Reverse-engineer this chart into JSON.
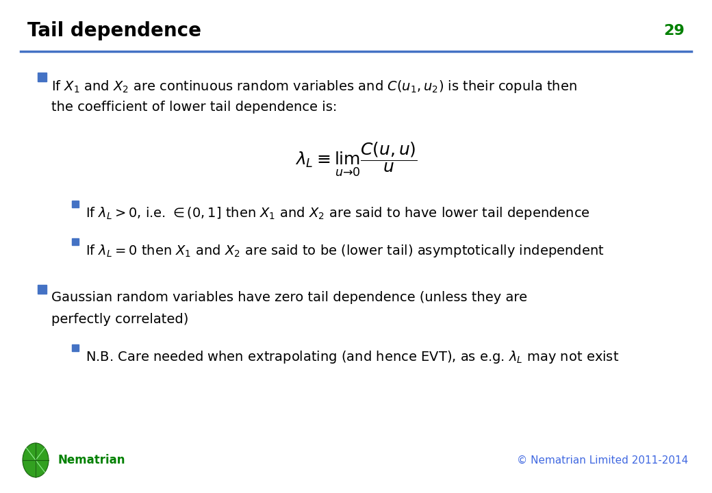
{
  "title": "Tail dependence",
  "slide_number": "29",
  "title_color": "#000000",
  "slide_number_color": "#008000",
  "header_line_color": "#4472C4",
  "background_color": "#FFFFFF",
  "bullet_color": "#4472C4",
  "text_color": "#000000",
  "footer_left": "Nematrian",
  "footer_right": "© Nematrian Limited 2011-2014",
  "footer_color": "#4169E1",
  "nematrian_color": "#008000",
  "title_fontsize": 20,
  "slide_number_fontsize": 16,
  "body_fontsize": 14,
  "formula_fontsize": 16
}
